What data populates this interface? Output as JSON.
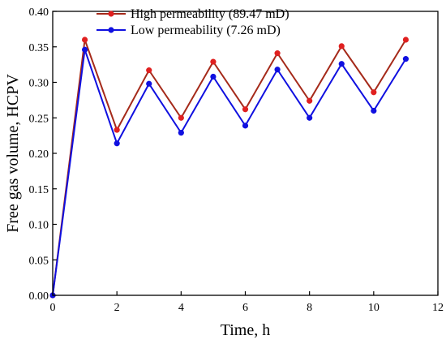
{
  "chart_data": {
    "type": "line",
    "xlabel": "Time, h",
    "ylabel": "Free gas volume, HCPV",
    "xlim": [
      0,
      12
    ],
    "ylim": [
      0,
      0.4
    ],
    "xticks": [
      0,
      2,
      4,
      6,
      8,
      10,
      12
    ],
    "yticks": [
      0.0,
      0.05,
      0.1,
      0.15,
      0.2,
      0.25,
      0.3,
      0.35,
      0.4
    ],
    "ytick_labels": [
      "0.00",
      "0.05",
      "0.10",
      "0.15",
      "0.20",
      "0.25",
      "0.30",
      "0.35",
      "0.40"
    ],
    "grid": false,
    "legend_position": "top-left",
    "x": [
      0,
      1,
      2,
      3,
      4,
      5,
      6,
      7,
      8,
      9,
      10,
      11
    ],
    "series": [
      {
        "name": "High permeability (89.47 mD)",
        "line_color": "#a52a1a",
        "marker_color": "#e02020",
        "values": [
          0.0,
          0.36,
          0.233,
          0.317,
          0.25,
          0.329,
          0.262,
          0.341,
          0.274,
          0.351,
          0.286,
          0.36
        ]
      },
      {
        "name": "Low permeability (7.26 mD)",
        "line_color": "#1010e0",
        "marker_color": "#1010e0",
        "values": [
          0.0,
          0.346,
          0.214,
          0.298,
          0.229,
          0.308,
          0.239,
          0.318,
          0.25,
          0.326,
          0.26,
          0.333
        ]
      }
    ]
  }
}
